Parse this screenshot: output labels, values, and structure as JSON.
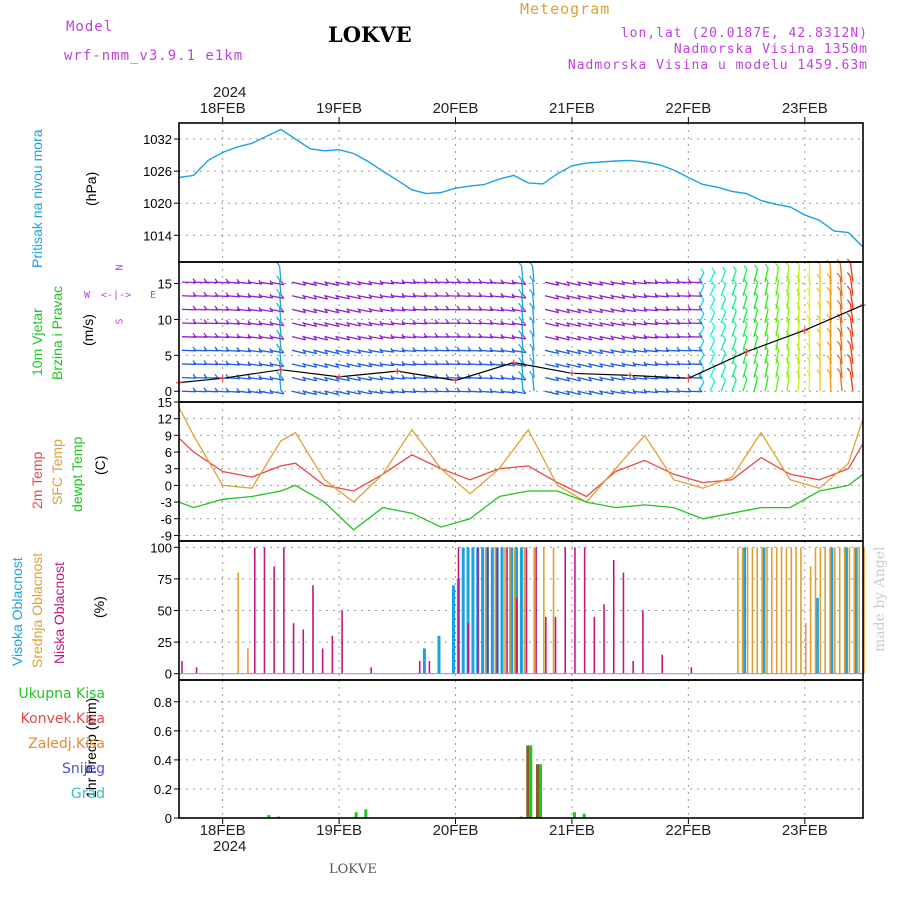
{
  "header": {
    "model_label": "Model",
    "model_name": "wrf-nmm_v3.9.1 e1km",
    "station": "LOKVE",
    "product": "Meteogram",
    "coords": "lon,lat (20.0187E, 42.8312N)",
    "altitude": "Nadmorska Visina 1350m",
    "model_altitude": "Nadmorska Visina u modelu 1459.63m"
  },
  "footer": {
    "station": "LOKVE",
    "watermark": "made by Angel"
  },
  "colors": {
    "pressure": "#1aa2e6",
    "wind_dir": "#c040e0",
    "temp2m": "#e84848",
    "sfc": "#e0a030",
    "dew": "#22c422",
    "high": "#1aa2e6",
    "mid": "#e0a030",
    "low": "#c01880",
    "total": "#22c422",
    "conv": "#e84848",
    "frozen": "#e88a30",
    "snow": "#5050e0",
    "graupel": "#30c0c0"
  },
  "time_axis": {
    "year": "2024",
    "days": [
      "18FEB",
      "19FEB",
      "20FEB",
      "21FEB",
      "22FEB",
      "23FEB"
    ],
    "start": "2024-02-17T15:00",
    "end": "2024-02-23T12:00"
  },
  "panels": {
    "pressure": {
      "title": "Pritisak na nivou mora",
      "unit": "(hPa)"
    },
    "wind": {
      "title1": "10m Vjetar",
      "title2": "Brzina i Pravac",
      "unit": "(m/s)",
      "compass": [
        "N",
        "W",
        "E",
        "S"
      ]
    },
    "temp": {
      "title1": "2m Temp",
      "title2": "SFC Temp",
      "title3": "dewpt Temp",
      "unit": "(C)"
    },
    "cloud": {
      "title1": "Visoka Oblacnost",
      "title2": "Srednja Oblacnost",
      "title3": "Niska Oblacnost",
      "unit": "(%)"
    },
    "precip": {
      "title": "1hr Precip (mm)",
      "legend": [
        "Ukupna Kisa",
        "Konvek.Kisa",
        "Zaledj.Kisa",
        "Snijeg",
        "Grad"
      ]
    }
  },
  "chart_data": [
    {
      "type": "line",
      "title": "Pritisak na nivou mora",
      "ylabel": "(hPa)",
      "ylim": [
        1009,
        1035
      ],
      "yticks": [
        1014,
        1020,
        1026,
        1032
      ],
      "series": [
        {
          "name": "Pritisak na nivou mora",
          "x": [
            "2024-02-17T15:00",
            "2024-02-17T18:00",
            "2024-02-17T21:00",
            "2024-02-18T00:00",
            "2024-02-18T03:00",
            "2024-02-18T06:00",
            "2024-02-18T09:00",
            "2024-02-18T12:00",
            "2024-02-18T15:00",
            "2024-02-18T18:00",
            "2024-02-18T21:00",
            "2024-02-19T00:00",
            "2024-02-19T03:00",
            "2024-02-19T06:00",
            "2024-02-19T09:00",
            "2024-02-19T12:00",
            "2024-02-19T15:00",
            "2024-02-19T18:00",
            "2024-02-19T21:00",
            "2024-02-20T00:00",
            "2024-02-20T03:00",
            "2024-02-20T06:00",
            "2024-02-20T09:00",
            "2024-02-20T12:00",
            "2024-02-20T15:00",
            "2024-02-20T18:00",
            "2024-02-20T21:00",
            "2024-02-21T00:00",
            "2024-02-21T03:00",
            "2024-02-21T06:00",
            "2024-02-21T09:00",
            "2024-02-21T12:00",
            "2024-02-21T15:00",
            "2024-02-21T18:00",
            "2024-02-21T21:00",
            "2024-02-22T00:00",
            "2024-02-22T03:00",
            "2024-02-22T06:00",
            "2024-02-22T09:00",
            "2024-02-22T12:00",
            "2024-02-22T15:00",
            "2024-02-22T18:00",
            "2024-02-22T21:00",
            "2024-02-23T00:00",
            "2024-02-23T03:00",
            "2024-02-23T06:00",
            "2024-02-23T09:00",
            "2024-02-23T12:00"
          ],
          "y": [
            1024.8,
            1025.2,
            1028.0,
            1029.5,
            1030.5,
            1031.2,
            1032.5,
            1033.8,
            1032.0,
            1030.2,
            1029.8,
            1030.0,
            1029.3,
            1027.8,
            1026.0,
            1024.3,
            1022.5,
            1021.8,
            1022.0,
            1022.8,
            1023.2,
            1023.5,
            1024.5,
            1025.2,
            1023.8,
            1023.6,
            1025.5,
            1027.0,
            1027.5,
            1027.7,
            1027.9,
            1028.0,
            1027.7,
            1027.2,
            1026.2,
            1024.8,
            1023.5,
            1023.0,
            1022.2,
            1021.8,
            1020.5,
            1019.8,
            1019.3,
            1017.8,
            1016.8,
            1014.8,
            1014.5,
            1011.8
          ]
        }
      ]
    },
    {
      "type": "line",
      "title": "10m Vjetar Brzina i Pravac",
      "ylabel": "(m/s)",
      "ylim": [
        -1.5,
        18
      ],
      "yticks": [
        0,
        5,
        10,
        15
      ],
      "series": [
        {
          "name": "Brzina",
          "x": [
            "2024-02-17T15:00",
            "2024-02-18T00:00",
            "2024-02-18T12:00",
            "2024-02-19T00:00",
            "2024-02-19T12:00",
            "2024-02-20T00:00",
            "2024-02-20T12:00",
            "2024-02-21T00:00",
            "2024-02-21T12:00",
            "2024-02-22T00:00",
            "2024-02-22T12:00",
            "2024-02-23T00:00",
            "2024-02-23T12:00"
          ],
          "y": [
            1.2,
            1.8,
            3.0,
            2.0,
            2.8,
            1.5,
            4.0,
            2.5,
            2.2,
            1.8,
            5.5,
            8.5,
            12.0
          ]
        }
      ]
    },
    {
      "type": "line",
      "title": "2m Temp / SFC Temp / dewpt Temp",
      "ylabel": "(C)",
      "ylim": [
        -10,
        15
      ],
      "yticks": [
        -9,
        -6,
        -3,
        0,
        3,
        6,
        9,
        12,
        15
      ],
      "series": [
        {
          "name": "2m Temp",
          "x": [
            "2024-02-17T15:00",
            "2024-02-17T18:00",
            "2024-02-18T00:00",
            "2024-02-18T06:00",
            "2024-02-18T12:00",
            "2024-02-18T15:00",
            "2024-02-18T21:00",
            "2024-02-19T03:00",
            "2024-02-19T09:00",
            "2024-02-19T15:00",
            "2024-02-19T21:00",
            "2024-02-20T03:00",
            "2024-02-20T09:00",
            "2024-02-20T15:00",
            "2024-02-20T21:00",
            "2024-02-21T03:00",
            "2024-02-21T09:00",
            "2024-02-21T15:00",
            "2024-02-21T21:00",
            "2024-02-22T03:00",
            "2024-02-22T09:00",
            "2024-02-22T15:00",
            "2024-02-22T21:00",
            "2024-02-23T03:00",
            "2024-02-23T09:00",
            "2024-02-23T12:00"
          ],
          "y": [
            8.5,
            6.0,
            2.5,
            1.5,
            3.5,
            4.0,
            0.0,
            -1.0,
            2.0,
            5.5,
            3.0,
            1.0,
            3.0,
            3.5,
            0.5,
            -2.0,
            2.5,
            4.5,
            2.0,
            0.5,
            1.0,
            5.0,
            2.0,
            1.0,
            3.0,
            7.5
          ]
        },
        {
          "name": "SFC Temp",
          "x": [
            "2024-02-17T15:00",
            "2024-02-17T18:00",
            "2024-02-18T00:00",
            "2024-02-18T06:00",
            "2024-02-18T12:00",
            "2024-02-18T15:00",
            "2024-02-18T21:00",
            "2024-02-19T03:00",
            "2024-02-19T09:00",
            "2024-02-19T15:00",
            "2024-02-19T21:00",
            "2024-02-20T03:00",
            "2024-02-20T09:00",
            "2024-02-20T15:00",
            "2024-02-20T21:00",
            "2024-02-21T03:00",
            "2024-02-21T09:00",
            "2024-02-21T15:00",
            "2024-02-21T21:00",
            "2024-02-22T03:00",
            "2024-02-22T09:00",
            "2024-02-22T15:00",
            "2024-02-22T21:00",
            "2024-02-23T03:00",
            "2024-02-23T09:00",
            "2024-02-23T12:00"
          ],
          "y": [
            14.0,
            9.0,
            0.0,
            -0.5,
            8.0,
            9.5,
            1.0,
            -3.0,
            2.0,
            10.0,
            3.0,
            -1.5,
            3.0,
            10.0,
            0.0,
            -3.0,
            3.0,
            9.0,
            1.0,
            -0.5,
            1.5,
            9.5,
            1.0,
            -0.5,
            4.0,
            12.0
          ]
        },
        {
          "name": "dewpt Temp",
          "x": [
            "2024-02-17T15:00",
            "2024-02-17T18:00",
            "2024-02-18T00:00",
            "2024-02-18T06:00",
            "2024-02-18T12:00",
            "2024-02-18T15:00",
            "2024-02-18T21:00",
            "2024-02-19T03:00",
            "2024-02-19T09:00",
            "2024-02-19T15:00",
            "2024-02-19T21:00",
            "2024-02-20T03:00",
            "2024-02-20T09:00",
            "2024-02-20T15:00",
            "2024-02-20T21:00",
            "2024-02-21T03:00",
            "2024-02-21T09:00",
            "2024-02-21T15:00",
            "2024-02-21T21:00",
            "2024-02-22T03:00",
            "2024-02-22T09:00",
            "2024-02-22T15:00",
            "2024-02-22T21:00",
            "2024-02-23T03:00",
            "2024-02-23T09:00",
            "2024-02-23T12:00"
          ],
          "y": [
            -3.0,
            -4.0,
            -2.5,
            -2.0,
            -1.0,
            0.0,
            -3.0,
            -8.0,
            -4.0,
            -5.0,
            -7.5,
            -6.0,
            -2.0,
            -1.0,
            -1.0,
            -3.0,
            -4.0,
            -3.5,
            -4.0,
            -6.0,
            -5.0,
            -4.0,
            -4.0,
            -1.0,
            0.0,
            2.0
          ]
        }
      ]
    },
    {
      "type": "bar",
      "title": "Oblacnost",
      "ylabel": "(%)",
      "ylim": [
        -5,
        105
      ],
      "yticks": [
        0,
        25,
        50,
        75,
        100
      ],
      "series": [
        {
          "name": "Visoka Oblacnost",
          "x": [
            "2024-02-19T18:00",
            "2024-02-19T21:00",
            "2024-02-20T00:00",
            "2024-02-20T01:00",
            "2024-02-20T02:00",
            "2024-02-20T03:00",
            "2024-02-20T04:00",
            "2024-02-20T05:00",
            "2024-02-20T06:00",
            "2024-02-20T07:00",
            "2024-02-20T08:00",
            "2024-02-20T09:00",
            "2024-02-20T10:00",
            "2024-02-20T12:00",
            "2024-02-20T13:00",
            "2024-02-20T14:00",
            "2024-02-22T12:00",
            "2024-02-22T16:00",
            "2024-02-23T03:00",
            "2024-02-23T06:00",
            "2024-02-23T09:00",
            "2024-02-23T11:00"
          ],
          "y": [
            20,
            30,
            70,
            75,
            100,
            100,
            100,
            100,
            100,
            100,
            100,
            100,
            100,
            100,
            100,
            100,
            100,
            100,
            60,
            100,
            100,
            100
          ]
        },
        {
          "name": "Srednja Oblacnost",
          "x": [
            "2024-02-18T03:00",
            "2024-02-18T05:00",
            "2024-02-20T06:00",
            "2024-02-20T08:00",
            "2024-02-20T10:00",
            "2024-02-20T11:00",
            "2024-02-20T12:00",
            "2024-02-20T14:00",
            "2024-02-20T16:00",
            "2024-02-20T18:00",
            "2024-02-20T20:00",
            "2024-02-22T10:00",
            "2024-02-22T11:00",
            "2024-02-22T12:00",
            "2024-02-22T13:00",
            "2024-02-22T14:00",
            "2024-02-22T15:00",
            "2024-02-22T16:00",
            "2024-02-22T17:00",
            "2024-02-22T18:00",
            "2024-02-22T19:00",
            "2024-02-22T20:00",
            "2024-02-22T21:00",
            "2024-02-22T22:00",
            "2024-02-22T23:00",
            "2024-02-23T00:00",
            "2024-02-23T01:00",
            "2024-02-23T02:00",
            "2024-02-23T03:00",
            "2024-02-23T04:00",
            "2024-02-23T05:00",
            "2024-02-23T06:00",
            "2024-02-23T07:00",
            "2024-02-23T08:00",
            "2024-02-23T09:00",
            "2024-02-23T10:00",
            "2024-02-23T11:00",
            "2024-02-23T12:00"
          ],
          "y": [
            80,
            20,
            100,
            100,
            100,
            100,
            100,
            100,
            100,
            100,
            100,
            100,
            100,
            100,
            100,
            100,
            100,
            100,
            100,
            100,
            100,
            100,
            100,
            100,
            100,
            40,
            85,
            100,
            100,
            100,
            100,
            100,
            100,
            100,
            100,
            100,
            100,
            100
          ]
        },
        {
          "name": "Niska Oblacnost",
          "x": [
            "2024-02-17T15:00",
            "2024-02-17T18:00",
            "2024-02-18T06:00",
            "2024-02-18T08:00",
            "2024-02-18T10:00",
            "2024-02-18T12:00",
            "2024-02-18T14:00",
            "2024-02-18T16:00",
            "2024-02-18T18:00",
            "2024-02-18T20:00",
            "2024-02-18T22:00",
            "2024-02-19T00:00",
            "2024-02-19T06:00",
            "2024-02-19T16:00",
            "2024-02-19T18:00",
            "2024-02-20T00:00",
            "2024-02-20T02:00",
            "2024-02-20T04:00",
            "2024-02-20T06:00",
            "2024-02-20T08:00",
            "2024-02-20T10:00",
            "2024-02-20T12:00",
            "2024-02-20T14:00",
            "2024-02-20T16:00",
            "2024-02-20T18:00",
            "2024-02-20T20:00",
            "2024-02-20T22:00",
            "2024-02-21T00:00",
            "2024-02-21T02:00",
            "2024-02-21T04:00",
            "2024-02-21T06:00",
            "2024-02-21T08:00",
            "2024-02-21T10:00",
            "2024-02-21T12:00",
            "2024-02-21T14:00",
            "2024-02-21T18:00",
            "2024-02-22T00:00"
          ],
          "y": [
            10,
            5,
            100,
            100,
            85,
            100,
            40,
            35,
            70,
            20,
            30,
            50,
            5,
            10,
            10,
            100,
            40,
            100,
            100,
            100,
            100,
            60,
            100,
            100,
            45,
            45,
            100,
            100,
            100,
            45,
            55,
            90,
            80,
            10,
            50,
            15,
            5
          ]
        }
      ]
    },
    {
      "type": "bar",
      "title": "1hr Precip",
      "ylabel": "1hr Precip (mm)",
      "ylim": [
        0,
        0.95
      ],
      "yticks": [
        0.0,
        0.2,
        0.4,
        0.6,
        0.8
      ],
      "series": [
        {
          "name": "Ukupna Kisa",
          "x": [
            "2024-02-18T09:00",
            "2024-02-18T11:00",
            "2024-02-19T03:00",
            "2024-02-19T05:00",
            "2024-02-20T13:00",
            "2024-02-20T15:00",
            "2024-02-20T17:00",
            "2024-02-21T00:00",
            "2024-02-21T02:00"
          ],
          "y": [
            0.02,
            0.01,
            0.04,
            0.06,
            0.01,
            0.5,
            0.37,
            0.04,
            0.03
          ]
        },
        {
          "name": "Konvek.Kisa",
          "x": [
            "2024-02-20T15:00",
            "2024-02-20T17:00"
          ],
          "y": [
            0.5,
            0.37
          ]
        },
        {
          "name": "Zaledj.Kisa",
          "x": [],
          "y": []
        },
        {
          "name": "Snijeg",
          "x": [],
          "y": []
        },
        {
          "name": "Grad",
          "x": [],
          "y": []
        }
      ]
    }
  ]
}
